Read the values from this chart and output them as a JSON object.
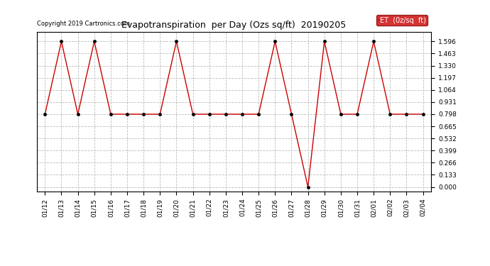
{
  "title": "Evapotranspiration  per Day (Ozs sq/ft)  20190205",
  "copyright": "Copyright 2019 Cartronics.com",
  "legend_label": "ET  (0z/sq  ft)",
  "x_labels": [
    "01/12",
    "01/13",
    "01/14",
    "01/15",
    "01/16",
    "01/17",
    "01/18",
    "01/19",
    "01/20",
    "01/21",
    "01/22",
    "01/23",
    "01/24",
    "01/25",
    "01/26",
    "01/27",
    "01/28",
    "01/29",
    "01/30",
    "01/31",
    "02/01",
    "02/02",
    "02/03",
    "02/04"
  ],
  "y_values": [
    0.798,
    1.596,
    0.798,
    1.596,
    0.798,
    0.798,
    0.798,
    0.798,
    1.596,
    0.798,
    0.798,
    0.798,
    0.798,
    0.798,
    1.596,
    0.798,
    0.0,
    1.596,
    0.798,
    0.798,
    1.596,
    0.798,
    0.798,
    0.798
  ],
  "y_ticks": [
    0.0,
    0.133,
    0.266,
    0.399,
    0.532,
    0.665,
    0.798,
    0.931,
    1.064,
    1.197,
    1.33,
    1.463,
    1.596
  ],
  "line_color": "#cc0000",
  "marker_color": "#000000",
  "background_color": "#ffffff",
  "grid_color": "#bbbbbb",
  "legend_bg": "#cc0000",
  "legend_text_color": "#ffffff",
  "title_fontsize": 9,
  "copyright_fontsize": 6,
  "tick_fontsize": 6.5,
  "legend_fontsize": 7
}
